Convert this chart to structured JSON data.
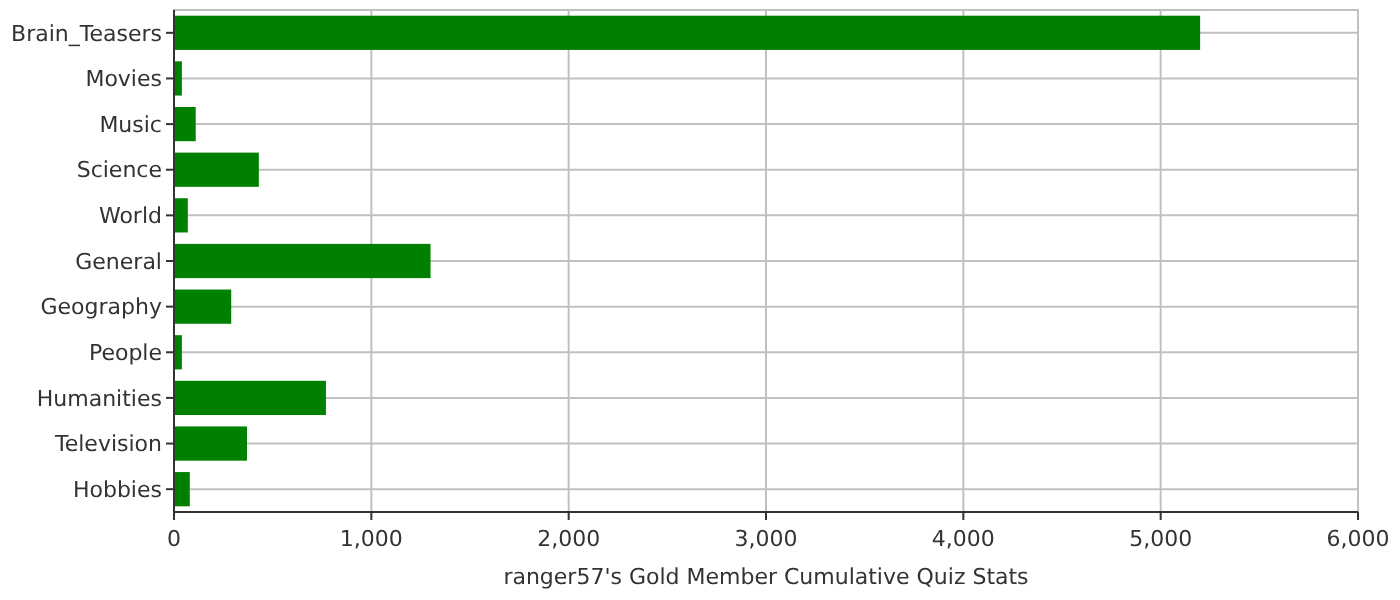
{
  "chart_data": {
    "type": "bar",
    "orientation": "horizontal",
    "xlabel": "ranger57's Gold Member Cumulative Quiz Stats",
    "categories": [
      "Brain_Teasers",
      "Movies",
      "Music",
      "Science",
      "World",
      "General",
      "Geography",
      "People",
      "Humanities",
      "Television",
      "Hobbies"
    ],
    "values": [
      5200,
      40,
      110,
      430,
      70,
      1300,
      290,
      40,
      770,
      370,
      80
    ],
    "color": "#008000",
    "xlim": [
      0,
      6000
    ],
    "xticks": [
      {
        "value": 0,
        "label": "0"
      },
      {
        "value": 1000,
        "label": "1,000"
      },
      {
        "value": 2000,
        "label": "2,000"
      },
      {
        "value": 3000,
        "label": "3,000"
      },
      {
        "value": 4000,
        "label": "4,000"
      },
      {
        "value": 5000,
        "label": "5,000"
      },
      {
        "value": 6000,
        "label": "6,000"
      }
    ],
    "grid": true
  }
}
